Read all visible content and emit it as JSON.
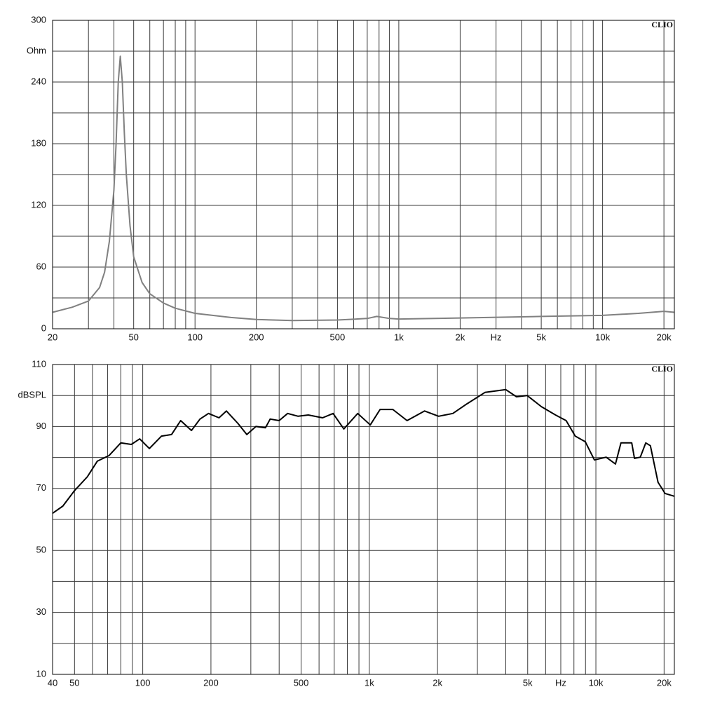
{
  "chart_data": [
    {
      "type": "line",
      "xscale": "log",
      "watermark": "CLIO",
      "color": "#808080",
      "xlim": [
        20,
        22500
      ],
      "ylim": [
        0,
        300
      ],
      "xticks": [
        20,
        50,
        100,
        200,
        500,
        {
          "value": 1000,
          "label": "1k"
        },
        {
          "value": 2000,
          "label": "2k"
        },
        {
          "value": 3000,
          "label": "Hz"
        },
        {
          "value": 5000,
          "label": "5k"
        },
        {
          "value": 10000,
          "label": "10k"
        },
        {
          "value": 20000,
          "label": "20k"
        }
      ],
      "xgrid": [
        30,
        40,
        60,
        70,
        80,
        90,
        300,
        400,
        600,
        700,
        800,
        900,
        4000,
        6000,
        7000,
        8000,
        9000
      ],
      "yticks": [
        0,
        60,
        120,
        180,
        240,
        {
          "value": 270,
          "label": "Ohm"
        },
        300
      ],
      "ygrid": [
        30,
        90,
        150,
        210
      ],
      "x": [
        20,
        25,
        30,
        34,
        36,
        38,
        40,
        41,
        42,
        43,
        44,
        45,
        46,
        48,
        50,
        55,
        60,
        70,
        80,
        100,
        150,
        200,
        300,
        500,
        700,
        780,
        900,
        1000,
        2000,
        5000,
        10000,
        15000,
        20000,
        22500
      ],
      "values": [
        16,
        21,
        27,
        40,
        55,
        85,
        135,
        180,
        240,
        265,
        240,
        190,
        150,
        100,
        70,
        45,
        34,
        25,
        20,
        15,
        11,
        9,
        8,
        8.5,
        10,
        12,
        10,
        9.5,
        10.5,
        12,
        13,
        15,
        17,
        16
      ]
    },
    {
      "type": "line",
      "xscale": "log",
      "watermark": "CLIO",
      "color": "#000000",
      "xlim": [
        40,
        22200
      ],
      "ylim": [
        10,
        110
      ],
      "xticks": [
        40,
        50,
        100,
        200,
        500,
        {
          "value": 1000,
          "label": "1k"
        },
        {
          "value": 2000,
          "label": "2k"
        },
        {
          "value": 5000,
          "label": "5k"
        },
        {
          "value": 7000,
          "label": "Hz"
        },
        {
          "value": 10000,
          "label": "10k"
        },
        {
          "value": 20000,
          "label": "20k"
        }
      ],
      "xgrid": [
        60,
        70,
        80,
        90,
        300,
        400,
        600,
        700,
        800,
        900,
        3000,
        4000,
        6000,
        8000,
        9000
      ],
      "yticks": [
        10,
        30,
        50,
        70,
        90,
        {
          "value": 100,
          "label": "dBSPL"
        },
        110
      ],
      "ygrid": [
        20,
        40,
        60,
        80
      ],
      "x": [
        40,
        44.4,
        50,
        57,
        63,
        71,
        80,
        89,
        97,
        107,
        121,
        134,
        147,
        164,
        179,
        195,
        217,
        234,
        263,
        288,
        316,
        348,
        365,
        400,
        436,
        485,
        538,
        622,
        692,
        772,
        889,
        1010,
        1116,
        1270,
        1468,
        1754,
        2023,
        2337,
        2697,
        3238,
        4001,
        4462,
        4973,
        5745,
        6635,
        7391,
        8108,
        8977,
        9851,
        11100,
        12200,
        12900,
        14400,
        14800,
        15700,
        16600,
        17400,
        18800,
        20200,
        22200
      ],
      "values": [
        62,
        64.3,
        69.3,
        73.8,
        78.8,
        80.6,
        84.7,
        84.2,
        86,
        82.9,
        86.9,
        87.4,
        91.9,
        88.7,
        92.4,
        94.2,
        92.8,
        95,
        91,
        87.4,
        90,
        89.6,
        92.4,
        91.9,
        94.2,
        93.3,
        93.7,
        92.8,
        94.2,
        89.2,
        94.2,
        90.5,
        95.5,
        95.5,
        91.9,
        95,
        93.3,
        94.2,
        97.3,
        101,
        101.9,
        99.6,
        100,
        96.4,
        93.7,
        91.9,
        86.9,
        85.1,
        79.2,
        80.1,
        77.9,
        84.7,
        84.7,
        79.7,
        80.1,
        84.7,
        83.8,
        72,
        68.4,
        67.5
      ]
    }
  ]
}
